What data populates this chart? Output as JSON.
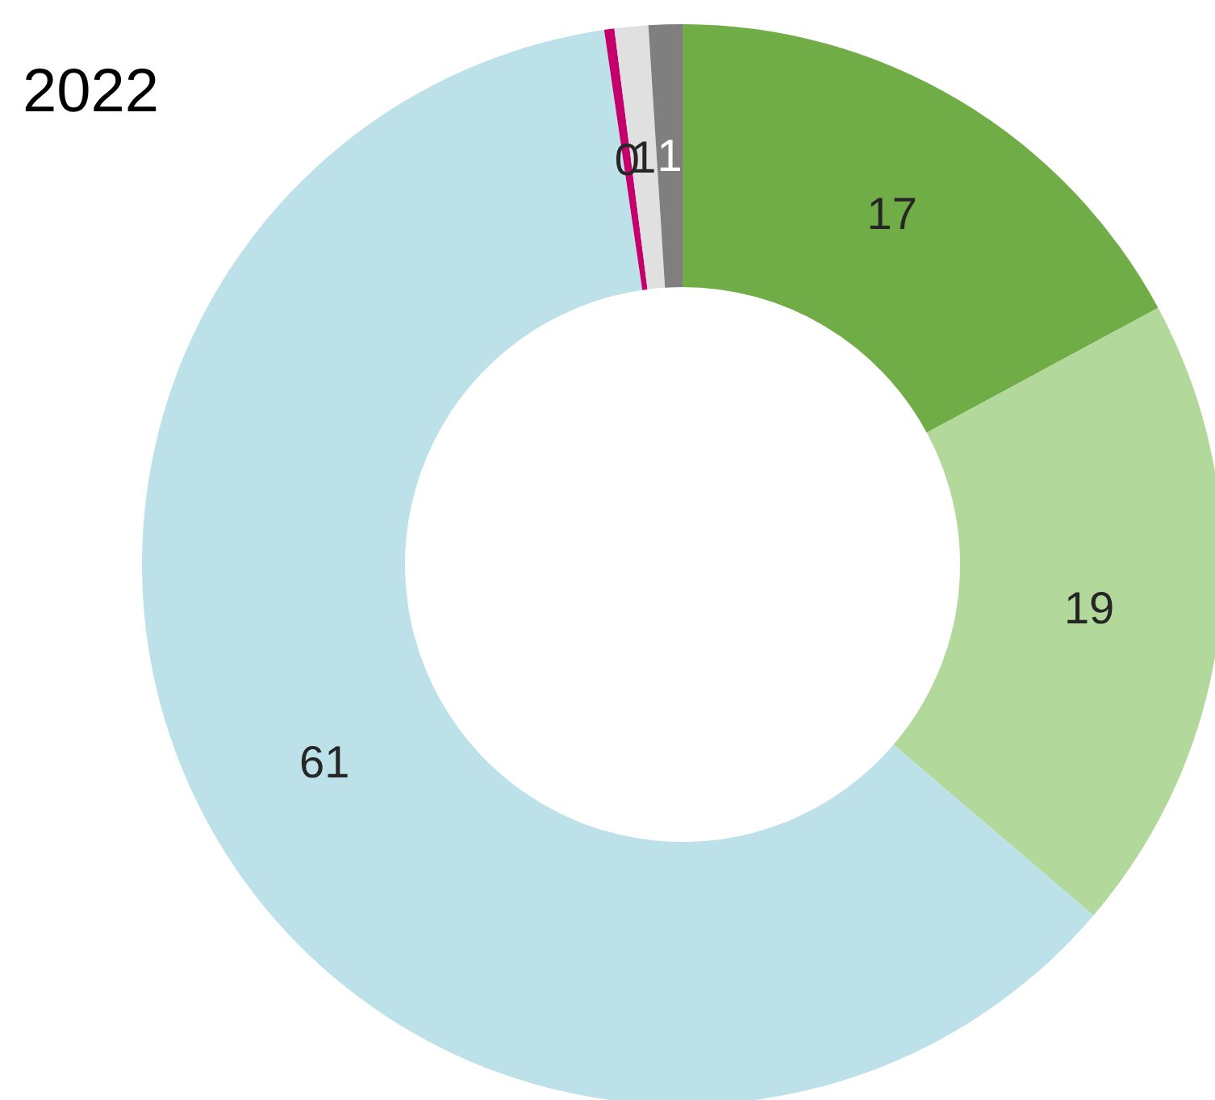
{
  "chart_data": {
    "type": "donut",
    "title": "2022",
    "categories": [
      null,
      null,
      null,
      null,
      null,
      null
    ],
    "values": [
      17,
      19,
      61,
      0.3,
      1,
      1
    ],
    "value_labels": [
      "17",
      "19",
      "61",
      "0",
      "1",
      "1"
    ],
    "colors": [
      "#70ad47",
      "#b3d89c",
      "#bde1e9",
      "#c3006b",
      "#e0e0e0",
      "#7f7f7f"
    ]
  }
}
